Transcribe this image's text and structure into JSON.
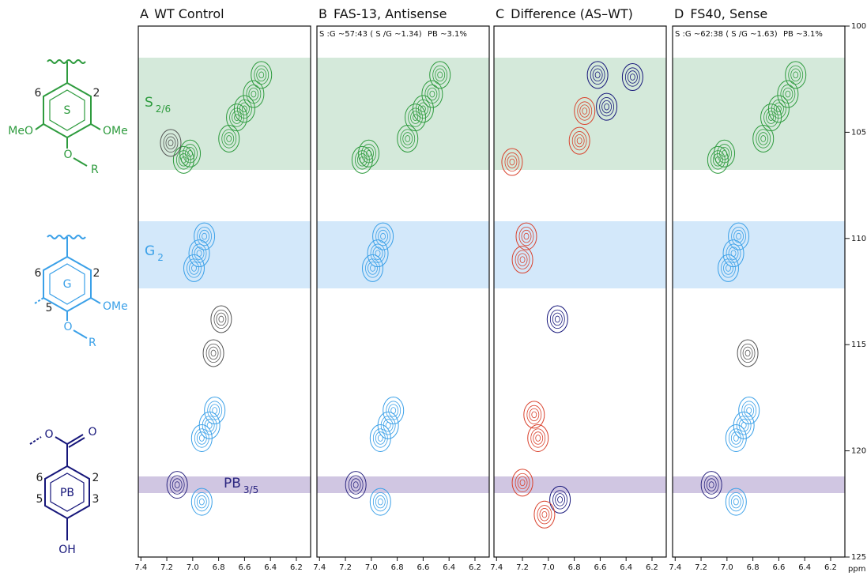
{
  "structures": {
    "s": {
      "ring": "S",
      "pos6": "6",
      "pos2": "2",
      "left": "MeO",
      "right": "OMe",
      "oxygen": "O",
      "r": "R"
    },
    "g": {
      "ring": "G",
      "pos6": "6",
      "pos2": "2",
      "pos5": "5",
      "right": "OMe",
      "oxygen": "O",
      "r": "R"
    },
    "pb": {
      "ring": "PB",
      "pos6": "6",
      "pos2": "2",
      "pos5": "5",
      "pos3": "3",
      "hydroxyl": "OH",
      "carbonyl": "O",
      "ester": "O"
    }
  },
  "chart_data": [
    {
      "type": "contour",
      "label": "A",
      "title": "WT Control",
      "annotations": [
        {
          "text": "S",
          "subscript": "2/6",
          "color": "#2e9b3e"
        },
        {
          "text": "G",
          "subscript": "2",
          "color": "#3aa0e8"
        },
        {
          "text": "PB",
          "subscript": "3/5",
          "color": "#2b2680"
        }
      ],
      "xlim": [
        7.42,
        6.09
      ],
      "xticks": [
        7.4,
        7.2,
        {
          "value": 7,
          "label": "7.0"
        },
        6.8,
        6.6,
        6.4,
        6.2
      ],
      "ylim": [
        100,
        125
      ],
      "series": [
        {
          "color": "#2e9b3e",
          "x": [
            6.53,
            6.47,
            6.66,
            6.72,
            7.02,
            7.07,
            6.6
          ],
          "y": [
            103.2,
            102.3,
            104.3,
            105.3,
            106.0,
            106.3,
            103.9
          ]
        },
        {
          "color": "#3aa0e8",
          "x": [
            6.95,
            6.91,
            6.99,
            6.87,
            6.93,
            6.83,
            6.93
          ],
          "y": [
            110.7,
            109.9,
            111.4,
            118.8,
            119.4,
            118.1,
            122.4
          ]
        },
        {
          "color": "#555555",
          "x": [
            7.17,
            6.78,
            6.84
          ],
          "y": [
            105.5,
            113.8,
            115.4
          ]
        },
        {
          "color": "#2b2680",
          "x": [
            7.12
          ],
          "y": [
            121.6
          ]
        }
      ]
    },
    {
      "type": "contour",
      "label": "B",
      "title": "FAS-13, Antisense",
      "stats": [
        "S :G ~57:43 ( S /G ~1.34)",
        "PB  ~3.1%"
      ],
      "xlim": [
        7.42,
        6.09
      ],
      "xticks": [
        7.4,
        7.2,
        {
          "value": 7,
          "label": "7.0"
        },
        6.8,
        6.6,
        6.4,
        6.2
      ],
      "ylim": [
        100,
        125
      ],
      "series": [
        {
          "color": "#2e9b3e",
          "x": [
            6.53,
            6.47,
            6.66,
            6.72,
            7.02,
            7.07,
            6.6
          ],
          "y": [
            103.2,
            102.3,
            104.3,
            105.3,
            106.0,
            106.3,
            103.9
          ]
        },
        {
          "color": "#3aa0e8",
          "x": [
            6.95,
            6.91,
            6.99,
            6.87,
            6.93,
            6.83,
            6.93
          ],
          "y": [
            110.7,
            109.9,
            111.4,
            118.8,
            119.4,
            118.1,
            122.4
          ]
        },
        {
          "color": "#2b2680",
          "x": [
            7.12
          ],
          "y": [
            121.6
          ]
        }
      ]
    },
    {
      "type": "contour",
      "label": "C",
      "title": "Difference (AS–WT)",
      "xlim": [
        7.42,
        6.09
      ],
      "xticks": [
        7.4,
        7.2,
        {
          "value": 7,
          "label": "7.0"
        },
        6.8,
        6.6,
        6.4,
        6.2
      ],
      "ylim": [
        100,
        125
      ],
      "series": [
        {
          "color": "#16167a",
          "x": [
            6.62,
            6.55,
            6.35,
            6.93,
            6.91
          ],
          "y": [
            102.3,
            103.8,
            102.4,
            113.8,
            122.3
          ]
        },
        {
          "color": "#d9412c",
          "x": [
            6.72,
            6.76,
            7.28,
            7.17,
            7.2,
            7.11,
            7.08,
            7.2,
            7.03
          ],
          "y": [
            104.0,
            105.4,
            106.4,
            109.9,
            111.0,
            118.3,
            119.4,
            121.5,
            123.0
          ]
        }
      ]
    },
    {
      "type": "contour",
      "label": "D",
      "title": "FS40, Sense",
      "stats": [
        "S :G ~62:38 ( S /G ~1.63)",
        "PB  ~3.1%"
      ],
      "xlim": [
        7.42,
        6.09
      ],
      "xticks": [
        7.4,
        7.2,
        {
          "value": 7,
          "label": "7.0"
        },
        6.8,
        6.6,
        6.4,
        6.2
      ],
      "ylim": [
        100,
        125
      ],
      "yticks": [
        100,
        105,
        110,
        115,
        120,
        125
      ],
      "unit_label": "ppm",
      "series": [
        {
          "color": "#2e9b3e",
          "x": [
            6.53,
            6.47,
            6.66,
            6.72,
            7.02,
            7.07,
            6.6
          ],
          "y": [
            103.2,
            102.3,
            104.3,
            105.3,
            106.0,
            106.3,
            103.9
          ]
        },
        {
          "color": "#3aa0e8",
          "x": [
            6.95,
            6.91,
            6.99,
            6.87,
            6.93,
            6.83,
            6.93
          ],
          "y": [
            110.7,
            109.9,
            111.4,
            118.8,
            119.4,
            118.1,
            122.4
          ]
        },
        {
          "color": "#555555",
          "x": [
            6.84
          ],
          "y": [
            115.4
          ]
        },
        {
          "color": "#2b2680",
          "x": [
            7.12
          ],
          "y": [
            121.6
          ]
        }
      ]
    }
  ]
}
